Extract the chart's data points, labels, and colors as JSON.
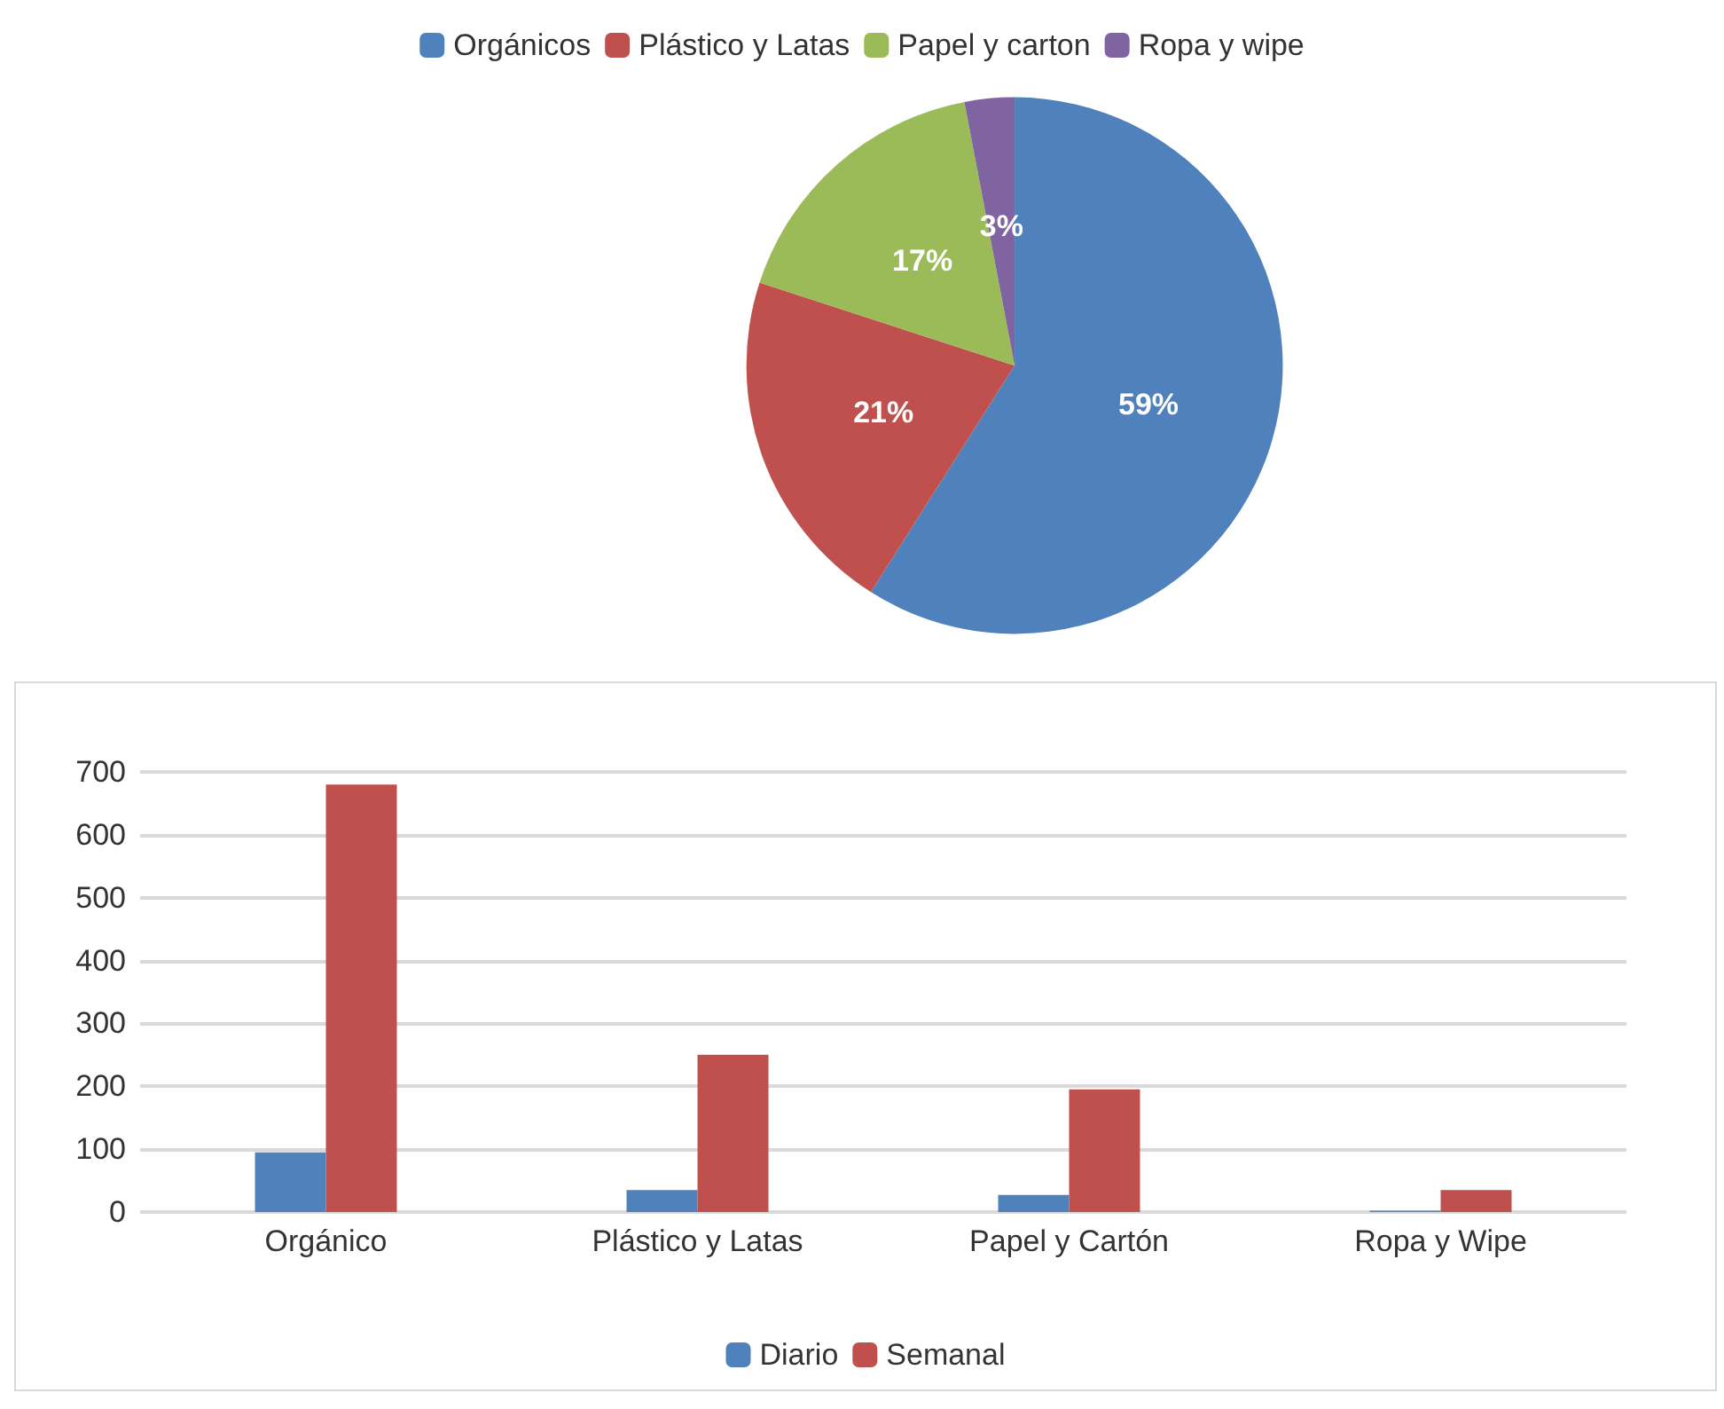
{
  "chart_data": [
    {
      "type": "pie",
      "categories": [
        "Orgánicos",
        "Plástico y Latas",
        "Papel y carton",
        "Ropa y wipe"
      ],
      "values": [
        59,
        21,
        17,
        3
      ],
      "colors": [
        "#4f81bd",
        "#c0504d",
        "#9bbb59",
        "#8064a2"
      ],
      "value_labels": [
        "59%",
        "21%",
        "17%",
        "3%"
      ],
      "legend": "top"
    },
    {
      "type": "bar",
      "categories": [
        "Orgánico",
        "Plástico y Latas",
        "Papel y Cartón",
        "Ropa y Wipe"
      ],
      "series": [
        {
          "name": "Diario",
          "color": "#4f81bd",
          "values": [
            95,
            35,
            27,
            2
          ]
        },
        {
          "name": "Semanal",
          "color": "#c0504d",
          "values": [
            680,
            250,
            195,
            35
          ]
        }
      ],
      "ylim": [
        0,
        700
      ],
      "yticks": [
        0,
        100,
        200,
        300,
        400,
        500,
        600,
        700
      ],
      "grid": "y",
      "legend": "bottom"
    }
  ]
}
